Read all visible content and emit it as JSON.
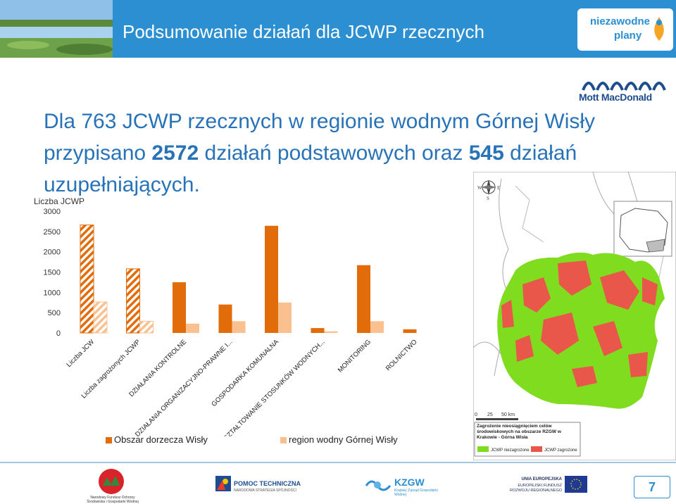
{
  "header": {
    "title": "Podsumowanie działań dla JCWP rzecznych",
    "logo_line1": "niezawodne",
    "logo_line2": "plany"
  },
  "brand": {
    "mott": "Mott MacDonald"
  },
  "headline": {
    "p1": "Dla 763 JCWP rzecznych w regionie wodnym Górnej Wisły przypisano ",
    "n1": "2572",
    "p2": " działań podstawowych oraz ",
    "n2": "545",
    "p3": " działań uzupełniających."
  },
  "chart_data": {
    "type": "bar",
    "ylabel": "Liczba JCWP",
    "ylim": [
      0,
      3000
    ],
    "yticks": [
      0,
      500,
      1000,
      1500,
      2000,
      2500,
      3000
    ],
    "categories": [
      "Liczba JCW",
      "Liczba zagrożonych JCWP",
      "DZIAŁANIA KONTROLNE",
      "DZIAŁANIA ORGANIZACYJNO-PRAWNE I...",
      "GOSPODARKA KOMUNALNA",
      "KSZTAŁTOWANIE STOSUNKÓW WODNYCH...",
      "MONITORING",
      "ROLNICTWO"
    ],
    "series": [
      {
        "name": "Obszar dorzecza Wisły",
        "values": [
          2660,
          1580,
          1250,
          700,
          2640,
          120,
          1670,
          90
        ],
        "color": "#e26b0a"
      },
      {
        "name": "region wodny Górnej Wisły",
        "values": [
          763,
          290,
          230,
          290,
          750,
          40,
          290,
          0
        ],
        "color": "#fac090"
      }
    ],
    "hatched_categories": [
      0,
      1
    ]
  },
  "map": {
    "scale_labels": [
      "0",
      "25",
      "50 km"
    ],
    "legend_title": "Zagrożenie nieosiągnięciem celów środowiskowych na obszarze RZGW w Krakowie - Górna Wisła",
    "legend_items": [
      {
        "label": "JCWP niezagrożone",
        "color": "#7fdc1e"
      },
      {
        "label": "JCWP zagrożone",
        "color": "#e8574a"
      }
    ],
    "compass": [
      "W",
      "E",
      "S"
    ]
  },
  "footer": {
    "logos": [
      "POMOC TECHNICZNA",
      "KZGW",
      "Krajowy Zarząd Gospodarki Wodnej",
      "UNIA EUROPEJSKA",
      "EUROPEJSKI FUNDUSZ ROZWOJU REGIONALNEGO",
      "Narodowy Fundusz Ochrony Środowiska i Gospodarki Wodnej",
      "NARODOWA STRATEGIA SPÓJNOŚCI"
    ],
    "page": "7"
  }
}
